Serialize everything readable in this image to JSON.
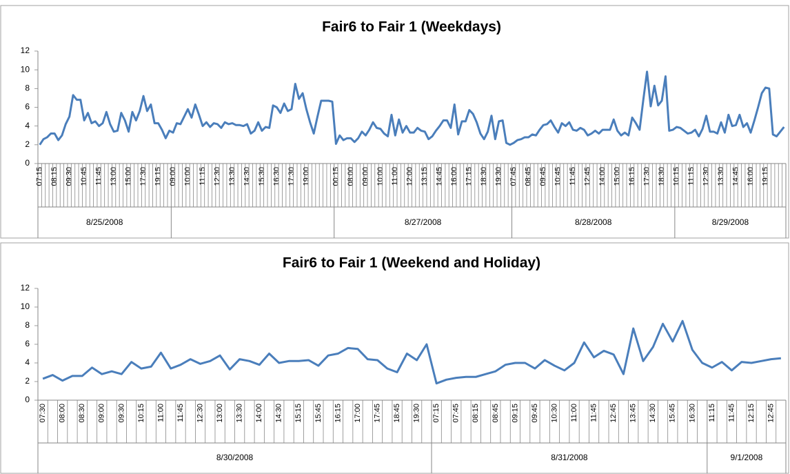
{
  "chart_data": [
    {
      "type": "line",
      "title": "Fair6 to Fair 1 (Weekdays)",
      "color": "#4a7ebb",
      "grid": false,
      "ylim": [
        0,
        12
      ],
      "yticks": [
        0,
        2,
        4,
        6,
        8,
        10,
        12
      ],
      "groups": [
        {
          "label": "8/25/2008",
          "categories": [
            "07:15",
            null,
            null,
            null,
            "08:15",
            null,
            null,
            null,
            "09:30",
            null,
            null,
            null,
            "10:45",
            null,
            null,
            null,
            "11:45",
            null,
            null,
            null,
            "13:00",
            null,
            null,
            null,
            "15:00",
            null,
            null,
            null,
            "17:30",
            null,
            null,
            null,
            "19:15",
            null,
            null,
            null
          ],
          "values": [
            2.0,
            2.6,
            2.8,
            3.2,
            3.2,
            2.5,
            3.0,
            4.2,
            5.0,
            7.3,
            6.8,
            6.8,
            4.6,
            5.4,
            4.3,
            4.5,
            4.0,
            4.3,
            5.5,
            4.2,
            3.4,
            3.5,
            5.4,
            4.6,
            3.4,
            5.5,
            4.6,
            5.6,
            7.2,
            5.6,
            6.3,
            4.3,
            4.3,
            3.6,
            2.7,
            3.5
          ]
        },
        {
          "label": null,
          "categories": [
            "09:00",
            null,
            null,
            null,
            "10:00",
            null,
            null,
            null,
            "11:15",
            null,
            null,
            null,
            "12:30",
            null,
            null,
            null,
            "13:30",
            null,
            null,
            null,
            "14:30",
            null,
            null,
            null,
            "15:30",
            null,
            null,
            null,
            "16:30",
            null,
            null,
            null,
            "17:30",
            null,
            null,
            null,
            "19:00",
            null,
            null,
            null,
            null,
            null,
            null,
            null
          ],
          "values": [
            3.3,
            4.3,
            4.2,
            5.0,
            5.8,
            4.9,
            6.3,
            5.2,
            4.0,
            4.4,
            3.9,
            4.3,
            4.2,
            3.8,
            4.4,
            4.2,
            4.3,
            4.1,
            4.1,
            4.0,
            4.2,
            3.2,
            3.5,
            4.4,
            3.5,
            3.9,
            3.8,
            6.2,
            6.0,
            5.4,
            6.4,
            5.6,
            5.8,
            8.5,
            6.9,
            7.5,
            5.8,
            4.4,
            3.2,
            5.0,
            6.7,
            6.7,
            6.7,
            6.6
          ]
        },
        {
          "label": "8/27/2008",
          "categories": [
            "00:15",
            null,
            null,
            null,
            "08:00",
            null,
            null,
            null,
            "09:00",
            null,
            null,
            null,
            "10:00",
            null,
            null,
            null,
            "11:00",
            null,
            null,
            null,
            "12:00",
            null,
            null,
            null,
            "13:15",
            null,
            null,
            null,
            "14:45",
            null,
            null,
            null,
            "16:00",
            null,
            null,
            null,
            "17:15",
            null,
            null,
            null,
            "18:30",
            null,
            null,
            null,
            "19:30",
            null,
            null,
            null
          ],
          "values": [
            2.1,
            3.0,
            2.5,
            2.7,
            2.7,
            2.3,
            2.7,
            3.4,
            3.0,
            3.6,
            4.4,
            3.8,
            3.7,
            3.2,
            2.9,
            5.2,
            3.0,
            4.7,
            3.3,
            4.0,
            3.3,
            3.3,
            3.8,
            3.5,
            3.4,
            2.6,
            2.9,
            3.5,
            4.0,
            4.6,
            4.6,
            3.8,
            6.3,
            3.1,
            4.5,
            4.5,
            5.7,
            5.3,
            4.4,
            3.2,
            2.6,
            3.4,
            5.1,
            2.6,
            4.5,
            4.6,
            2.2,
            2.0
          ]
        },
        {
          "label": "8/28/2008",
          "categories": [
            "07:45",
            null,
            null,
            null,
            "08:45",
            null,
            null,
            null,
            "09:45",
            null,
            null,
            null,
            "10:45",
            null,
            null,
            null,
            "11:45",
            null,
            null,
            null,
            "12:45",
            null,
            null,
            null,
            "14:00",
            null,
            null,
            null,
            "15:00",
            null,
            null,
            null,
            "16:15",
            null,
            null,
            null,
            "17:30",
            null,
            null,
            null,
            "18:30",
            null,
            null,
            null
          ],
          "values": [
            2.2,
            2.5,
            2.6,
            2.8,
            2.8,
            3.1,
            3.0,
            3.6,
            4.1,
            4.2,
            4.6,
            3.9,
            3.3,
            4.3,
            4.0,
            4.4,
            3.6,
            3.5,
            3.8,
            3.6,
            3.0,
            3.2,
            3.5,
            3.2,
            3.6,
            3.6,
            3.6,
            4.7,
            3.5,
            3.0,
            3.3,
            3.0,
            4.9,
            4.3,
            3.6,
            6.8,
            9.8,
            6.1,
            8.3,
            6.2,
            6.7,
            9.3,
            3.5,
            3.6
          ]
        },
        {
          "label": "8/29/2008",
          "categories": [
            "10:15",
            null,
            null,
            null,
            "11:15",
            null,
            null,
            null,
            "12:30",
            null,
            null,
            null,
            "13:30",
            null,
            null,
            null,
            "14:45",
            null,
            null,
            null,
            "16:00",
            null,
            null,
            null,
            "19:15",
            null,
            null,
            null,
            null,
            null
          ],
          "values": [
            3.9,
            3.8,
            3.5,
            3.2,
            3.3,
            3.6,
            2.9,
            3.7,
            5.1,
            3.4,
            3.4,
            3.2,
            4.4,
            3.3,
            5.2,
            4.0,
            4.1,
            5.2,
            3.9,
            4.3,
            3.3,
            4.6,
            6.0,
            7.5,
            8.1,
            8.0,
            3.1,
            2.9,
            3.4,
            3.9
          ]
        }
      ]
    },
    {
      "type": "line",
      "title": "Fair6 to Fair 1 (Weekend and Holiday)",
      "color": "#4a7ebb",
      "grid": false,
      "ylim": [
        0,
        12
      ],
      "yticks": [
        0,
        2,
        4,
        6,
        8,
        10,
        12
      ],
      "groups": [
        {
          "label": "8/30/2008",
          "categories": [
            "07:30",
            null,
            "08:00",
            null,
            "08:30",
            null,
            "09:00",
            null,
            "09:30",
            null,
            "10:15",
            null,
            "11:00",
            null,
            "11:45",
            null,
            "12:30",
            null,
            "13:00",
            null,
            "13:30",
            null,
            "14:00",
            null,
            "14:30",
            null,
            "15:15",
            null,
            "15:45",
            null,
            "16:15",
            null,
            "17:00",
            null,
            "17:45",
            null,
            "18:45",
            null,
            "19:30",
            null
          ],
          "values": [
            2.3,
            2.7,
            2.1,
            2.6,
            2.6,
            3.5,
            2.8,
            3.1,
            2.8,
            4.1,
            3.4,
            3.6,
            5.1,
            3.4,
            3.8,
            4.4,
            3.9,
            4.2,
            4.8,
            3.3,
            4.4,
            4.2,
            3.8,
            5.0,
            4.0,
            4.2,
            4.2,
            4.3,
            3.7,
            4.8,
            5.0,
            5.6,
            5.5,
            4.4,
            4.3,
            3.4,
            3.0,
            5.0,
            4.3,
            6.0
          ]
        },
        {
          "label": "8/31/2008",
          "categories": [
            "07:15",
            null,
            "07:45",
            null,
            "08:15",
            null,
            "08:45",
            null,
            "09:15",
            null,
            "09:45",
            null,
            "10:30",
            null,
            "11:00",
            null,
            "11:45",
            null,
            "12:45",
            null,
            "13:45",
            null,
            "14:30",
            null,
            "15:45",
            null,
            "16:30",
            null
          ],
          "values": [
            1.8,
            2.2,
            2.4,
            2.5,
            2.5,
            2.8,
            3.1,
            3.8,
            4.0,
            4.0,
            3.4,
            4.3,
            3.7,
            3.2,
            4.0,
            6.2,
            4.6,
            5.3,
            4.9,
            2.8,
            7.7,
            4.2,
            5.7,
            8.2,
            6.3,
            8.5,
            5.4,
            4.0
          ]
        },
        {
          "label": "9/1/2008",
          "categories": [
            "11:15",
            null,
            "11:45",
            null,
            "12:15",
            null,
            "12:45",
            null
          ],
          "values": [
            3.5,
            4.1,
            3.2,
            4.1,
            4.0,
            4.2,
            4.4,
            4.5
          ]
        }
      ]
    }
  ]
}
